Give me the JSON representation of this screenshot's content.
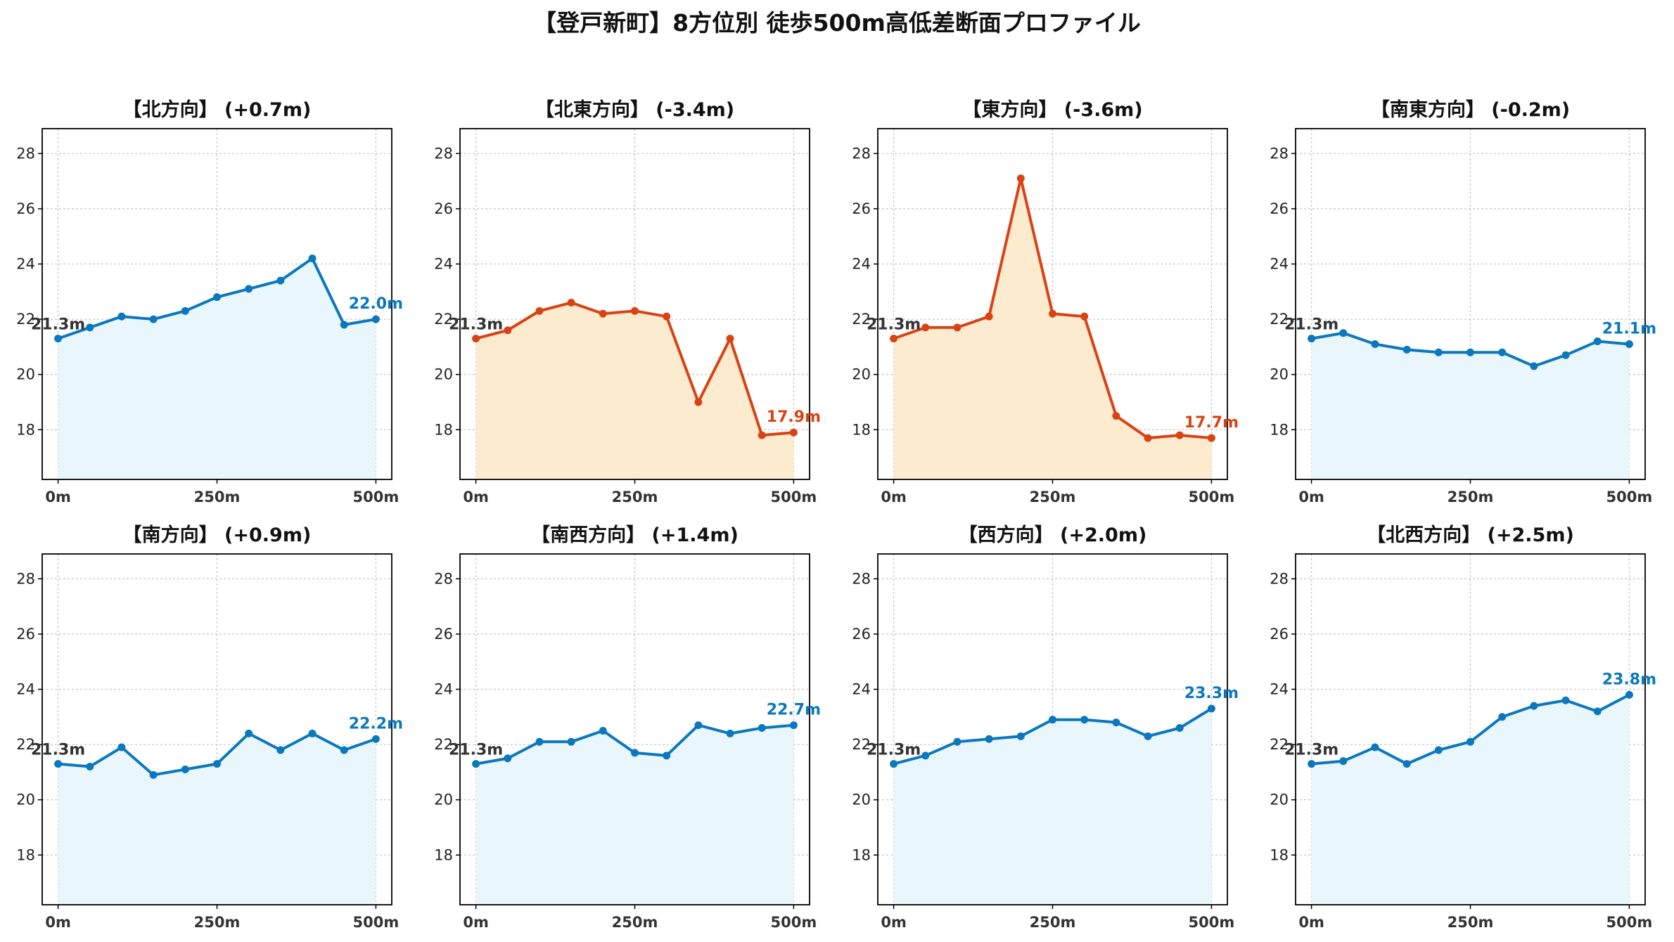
{
  "title": "【登戸新町】8方位別 徒歩500m高低差断面プロファイル",
  "colors": {
    "up": "#0b78bd",
    "up_fill": "#e9f6fb",
    "down": "#d84315",
    "down_fill": "#fdebd0"
  },
  "chart_data": [
    {
      "type": "area",
      "title": "【北方向】 (+0.7m)",
      "trend": "up",
      "x": [
        0,
        50,
        100,
        150,
        200,
        250,
        300,
        350,
        400,
        450,
        500
      ],
      "y": [
        21.3,
        21.7,
        22.1,
        22.0,
        22.3,
        22.8,
        23.1,
        23.4,
        24.2,
        21.8,
        22.0
      ],
      "start_label": "21.3m",
      "end_label": "22.0m",
      "xticks": [
        "0m",
        "250m",
        "500m"
      ],
      "yticks": [
        18,
        20,
        22,
        24,
        26,
        28
      ],
      "ylim": [
        16.2,
        28.9
      ],
      "xlim": [
        -25,
        525
      ],
      "grid": true
    },
    {
      "type": "area",
      "title": "【北東方向】 (-3.4m)",
      "trend": "down",
      "x": [
        0,
        50,
        100,
        150,
        200,
        250,
        300,
        350,
        400,
        450,
        500
      ],
      "y": [
        21.3,
        21.6,
        22.3,
        22.6,
        22.2,
        22.3,
        22.1,
        19.0,
        21.3,
        17.8,
        17.9
      ],
      "start_label": "21.3m",
      "end_label": "17.9m",
      "xticks": [
        "0m",
        "250m",
        "500m"
      ],
      "yticks": [
        18,
        20,
        22,
        24,
        26,
        28
      ],
      "ylim": [
        16.2,
        28.9
      ],
      "xlim": [
        -25,
        525
      ],
      "grid": true
    },
    {
      "type": "area",
      "title": "【東方向】 (-3.6m)",
      "trend": "down",
      "x": [
        0,
        50,
        100,
        150,
        200,
        250,
        300,
        350,
        400,
        450,
        500
      ],
      "y": [
        21.3,
        21.7,
        21.7,
        22.1,
        27.1,
        22.2,
        22.1,
        18.5,
        17.7,
        17.8,
        17.7
      ],
      "start_label": "21.3m",
      "end_label": "17.7m",
      "xticks": [
        "0m",
        "250m",
        "500m"
      ],
      "yticks": [
        18,
        20,
        22,
        24,
        26,
        28
      ],
      "ylim": [
        16.2,
        28.9
      ],
      "xlim": [
        -25,
        525
      ],
      "grid": true
    },
    {
      "type": "area",
      "title": "【南東方向】 (-0.2m)",
      "trend": "up",
      "x": [
        0,
        50,
        100,
        150,
        200,
        250,
        300,
        350,
        400,
        450,
        500
      ],
      "y": [
        21.3,
        21.5,
        21.1,
        20.9,
        20.8,
        20.8,
        20.8,
        20.3,
        20.7,
        21.2,
        21.1
      ],
      "start_label": "21.3m",
      "end_label": "21.1m",
      "xticks": [
        "0m",
        "250m",
        "500m"
      ],
      "yticks": [
        18,
        20,
        22,
        24,
        26,
        28
      ],
      "ylim": [
        16.2,
        28.9
      ],
      "xlim": [
        -25,
        525
      ],
      "grid": true
    },
    {
      "type": "area",
      "title": "【南方向】 (+0.9m)",
      "trend": "up",
      "x": [
        0,
        50,
        100,
        150,
        200,
        250,
        300,
        350,
        400,
        450,
        500
      ],
      "y": [
        21.3,
        21.2,
        21.9,
        20.9,
        21.1,
        21.3,
        22.4,
        21.8,
        22.4,
        21.8,
        22.2
      ],
      "start_label": "21.3m",
      "end_label": "22.2m",
      "xticks": [
        "0m",
        "250m",
        "500m"
      ],
      "yticks": [
        18,
        20,
        22,
        24,
        26,
        28
      ],
      "ylim": [
        16.2,
        28.9
      ],
      "xlim": [
        -25,
        525
      ],
      "grid": true
    },
    {
      "type": "area",
      "title": "【南西方向】 (+1.4m)",
      "trend": "up",
      "x": [
        0,
        50,
        100,
        150,
        200,
        250,
        300,
        350,
        400,
        450,
        500
      ],
      "y": [
        21.3,
        21.5,
        22.1,
        22.1,
        22.5,
        21.7,
        21.6,
        22.7,
        22.4,
        22.6,
        22.7
      ],
      "start_label": "21.3m",
      "end_label": "22.7m",
      "xticks": [
        "0m",
        "250m",
        "500m"
      ],
      "yticks": [
        18,
        20,
        22,
        24,
        26,
        28
      ],
      "ylim": [
        16.2,
        28.9
      ],
      "xlim": [
        -25,
        525
      ],
      "grid": true
    },
    {
      "type": "area",
      "title": "【西方向】 (+2.0m)",
      "trend": "up",
      "x": [
        0,
        50,
        100,
        150,
        200,
        250,
        300,
        350,
        400,
        450,
        500
      ],
      "y": [
        21.3,
        21.6,
        22.1,
        22.2,
        22.3,
        22.9,
        22.9,
        22.8,
        22.3,
        22.6,
        23.3
      ],
      "start_label": "21.3m",
      "end_label": "23.3m",
      "xticks": [
        "0m",
        "250m",
        "500m"
      ],
      "yticks": [
        18,
        20,
        22,
        24,
        26,
        28
      ],
      "ylim": [
        16.2,
        28.9
      ],
      "xlim": [
        -25,
        525
      ],
      "grid": true
    },
    {
      "type": "area",
      "title": "【北西方向】 (+2.5m)",
      "trend": "up",
      "x": [
        0,
        50,
        100,
        150,
        200,
        250,
        300,
        350,
        400,
        450,
        500
      ],
      "y": [
        21.3,
        21.4,
        21.9,
        21.3,
        21.8,
        22.1,
        23.0,
        23.4,
        23.6,
        23.2,
        23.8
      ],
      "start_label": "21.3m",
      "end_label": "23.8m",
      "xticks": [
        "0m",
        "250m",
        "500m"
      ],
      "yticks": [
        18,
        20,
        22,
        24,
        26,
        28
      ],
      "ylim": [
        16.2,
        28.9
      ],
      "xlim": [
        -25,
        525
      ],
      "grid": true
    }
  ]
}
